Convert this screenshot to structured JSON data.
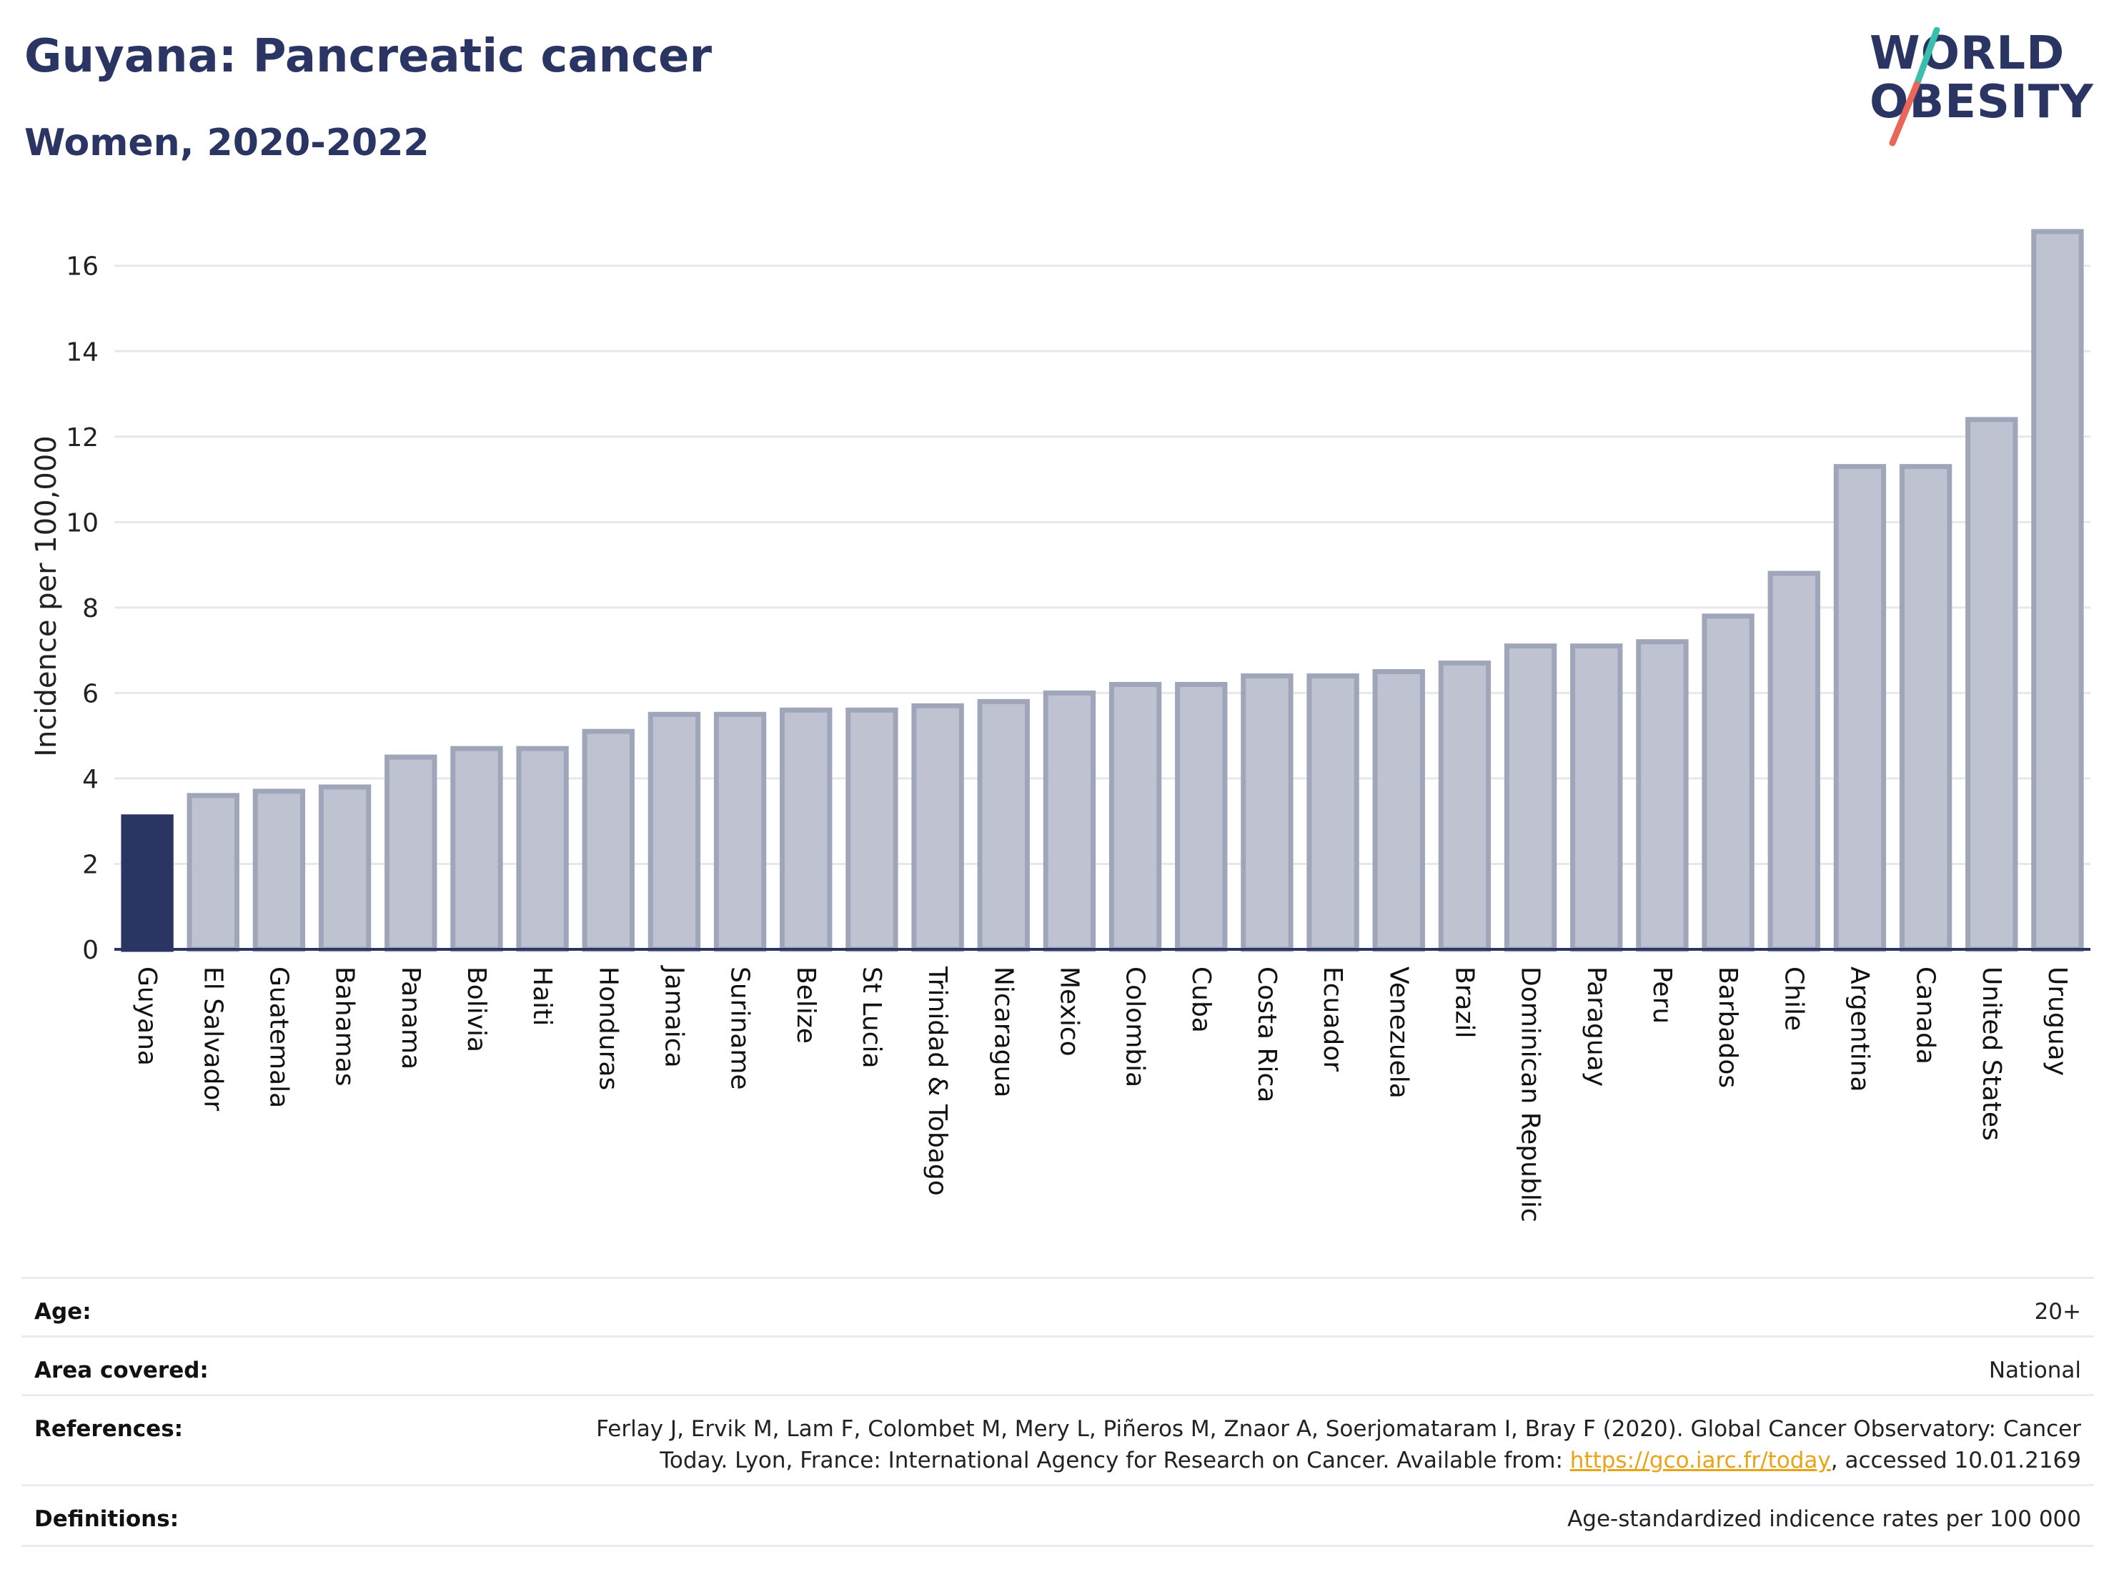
{
  "header": {
    "title": "Guyana: Pancreatic cancer",
    "subtitle": "Women, 2020-2022",
    "logo_line1": "WORLD",
    "logo_line2": "OBESITY"
  },
  "colors": {
    "highlight": "#2b3563",
    "bar": "#bfc3d1",
    "bar_stroke": "#a0a6ba",
    "logo_teal": "#3bbfad",
    "logo_coral": "#e8665a"
  },
  "chart_data": {
    "type": "bar",
    "title": "Guyana: Pancreatic cancer",
    "subtitle": "Women, 2020-2022",
    "xlabel": "",
    "ylabel": "Incidence per 100,000",
    "ylim": [
      0,
      17.2
    ],
    "yticks": [
      0,
      2,
      4,
      6,
      8,
      10,
      12,
      14,
      16
    ],
    "grid": true,
    "highlight_category": "Guyana",
    "categories": [
      "Guyana",
      "El Salvador",
      "Guatemala",
      "Bahamas",
      "Panama",
      "Bolivia",
      "Haiti",
      "Honduras",
      "Jamaica",
      "Suriname",
      "Belize",
      "St Lucia",
      "Trinidad & Tobago",
      "Nicaragua",
      "Mexico",
      "Colombia",
      "Cuba",
      "Costa Rica",
      "Ecuador",
      "Venezuela",
      "Brazil",
      "Dominican Republic",
      "Paraguay",
      "Peru",
      "Barbados",
      "Chile",
      "Argentina",
      "Canada",
      "United States",
      "Uruguay"
    ],
    "values": [
      3.1,
      3.6,
      3.7,
      3.8,
      4.5,
      4.7,
      4.7,
      5.1,
      5.5,
      5.5,
      5.6,
      5.6,
      5.7,
      5.8,
      6.0,
      6.2,
      6.2,
      6.4,
      6.4,
      6.5,
      6.7,
      7.1,
      7.1,
      7.2,
      7.8,
      8.8,
      11.3,
      11.3,
      12.4,
      16.8
    ]
  },
  "meta": {
    "age_label": "Age:",
    "age_value": "20+",
    "area_label": "Area covered:",
    "area_value": "National",
    "references_label": "References:",
    "references_line1": "Ferlay J, Ervik M, Lam F, Colombet M, Mery L, Piñeros M, Znaor A, Soerjomataram I, Bray F (2020). Global Cancer Observatory: Cancer",
    "references_line2_prefix": "Today. Lyon, France: International Agency for Research on Cancer. Available from: ",
    "references_link": "https://gco.iarc.fr/today",
    "references_line2_suffix": ", accessed 10.01.2169",
    "definitions_label": "Definitions:",
    "definitions_value": "Age-standardized indicence rates per 100 000"
  }
}
